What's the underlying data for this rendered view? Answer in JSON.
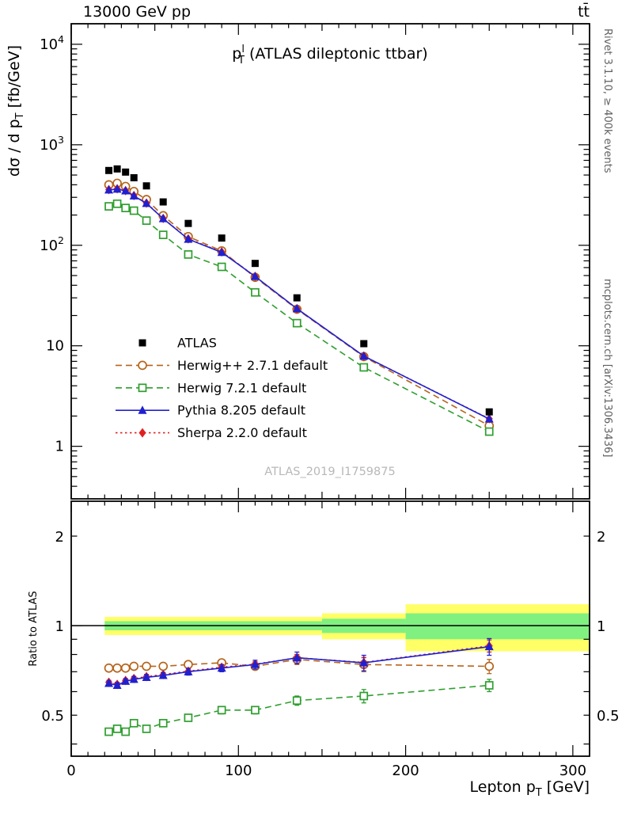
{
  "header": {
    "left": "13000 GeV pp",
    "right": "tt̄"
  },
  "side_notes": {
    "right_top": "Rivet 3.1.10, ≥ 400k events",
    "right_bottom": "mcplots.cern.ch [arXiv:1306.3436]"
  },
  "watermark": "ATLAS_2019_I1759875",
  "labels": {
    "panel_title": {
      "base": "p",
      "sup": "l",
      "sub": "T",
      "rest": " (ATLAS dileptonic ttbar)"
    },
    "ylabel_main": {
      "pre": "dσ / d p",
      "sub": "T",
      "post": " [fb/GeV]"
    },
    "ylabel_ratio": "Ratio to ATLAS",
    "xlabel": {
      "pre": "Lepton p",
      "sub": "T",
      "post": " [GeV]"
    }
  },
  "chart_data": {
    "type": "line",
    "title": "p_T^l (ATLAS dileptonic ttbar)",
    "xlabel": "Lepton p_T [GeV]",
    "ylabel_main": "dσ / d p_T [fb/GeV]",
    "ylabel_ratio": "Ratio to ATLAS",
    "grid": false,
    "legend_position": "middle-left",
    "xlim": [
      0,
      310
    ],
    "ylim_main": [
      0.3,
      16000
    ],
    "ylim_ratio": [
      0.364,
      2.62
    ],
    "x_ticks": [
      0,
      100,
      200,
      300
    ],
    "x_minor_step": 10,
    "y_ticks_main": [
      {
        "v": 1,
        "label": "1"
      },
      {
        "v": 10,
        "label": "10"
      },
      {
        "v": 100,
        "label": "10",
        "exp": "2"
      },
      {
        "v": 1000,
        "label": "10",
        "exp": "3"
      },
      {
        "v": 10000,
        "label": "10",
        "exp": "4"
      }
    ],
    "y_ticks_ratio": [
      {
        "v": 0.5,
        "label": "0.5"
      },
      {
        "v": 1,
        "label": "1"
      },
      {
        "v": 2,
        "label": "2"
      }
    ],
    "x": [
      22.5,
      27.5,
      32.5,
      37.5,
      45,
      55,
      70,
      90,
      110,
      135,
      175,
      250
    ],
    "series": [
      {
        "id": "herwigpp",
        "name": "Herwig++ 2.7.1 default",
        "marker": "circle-open",
        "color": "#b5651d",
        "line": "dashed",
        "values": [
          400,
          414,
          385,
          343,
          285,
          197,
          122,
          88,
          48,
          23.1,
          7.8,
          1.6
        ],
        "ratio": [
          0.72,
          0.72,
          0.72,
          0.73,
          0.73,
          0.73,
          0.74,
          0.75,
          0.73,
          0.77,
          0.74,
          0.73
        ],
        "ratio_err": [
          0.015,
          0.015,
          0.015,
          0.015,
          0.015,
          0.015,
          0.015,
          0.02,
          0.02,
          0.03,
          0.04,
          0.04
        ]
      },
      {
        "id": "herwig7",
        "name": "Herwig 7.2.1 default",
        "marker": "square-open",
        "color": "#2f9e2f",
        "line": "dashed",
        "values": [
          244,
          259,
          235,
          221,
          176,
          127,
          81,
          61,
          34,
          16.8,
          6.1,
          1.4
        ],
        "ratio": [
          0.44,
          0.45,
          0.44,
          0.47,
          0.45,
          0.47,
          0.49,
          0.52,
          0.52,
          0.56,
          0.58,
          0.63
        ],
        "ratio_err": [
          0.01,
          0.01,
          0.01,
          0.01,
          0.01,
          0.01,
          0.012,
          0.015,
          0.015,
          0.02,
          0.03,
          0.03
        ]
      },
      {
        "id": "sherpa",
        "name": "Sherpa 2.2.0 default",
        "marker": "diamond-filled",
        "color": "#e02020",
        "line": "dotted",
        "values": [
          358,
          365,
          350,
          312,
          263,
          185,
          116,
          86,
          49,
          23.4,
          7.9,
          1.88
        ],
        "ratio": [
          0.645,
          0.635,
          0.654,
          0.664,
          0.674,
          0.685,
          0.703,
          0.725,
          0.742,
          0.78,
          0.752,
          0.855
        ],
        "ratio_err": [
          0.01,
          0.01,
          0.01,
          0.01,
          0.01,
          0.01,
          0.01,
          0.012,
          0.015,
          0.02,
          0.03,
          0.04
        ]
      },
      {
        "id": "pythia",
        "name": "Pythia 8.205 default",
        "marker": "triangle-filled",
        "color": "#2020d0",
        "line": "solid",
        "values": [
          355,
          362,
          348,
          310,
          261,
          184,
          115,
          85,
          49,
          23.4,
          7.9,
          1.87
        ],
        "ratio": [
          0.64,
          0.63,
          0.65,
          0.66,
          0.67,
          0.68,
          0.7,
          0.72,
          0.74,
          0.78,
          0.75,
          0.85
        ],
        "ratio_err": [
          0.012,
          0.012,
          0.012,
          0.015,
          0.015,
          0.015,
          0.018,
          0.02,
          0.025,
          0.035,
          0.045,
          0.055
        ]
      },
      {
        "id": "atlas",
        "name": "ATLAS",
        "marker": "square-filled",
        "color": "#000000",
        "line": "none",
        "values": [
          555,
          575,
          535,
          470,
          390,
          270,
          165,
          118,
          66,
          30,
          10.5,
          2.2
        ]
      }
    ],
    "legend_order": [
      "atlas",
      "herwigpp",
      "herwig7",
      "pythia",
      "sherpa"
    ],
    "reference_line": 1,
    "bands": {
      "yellow": {
        "color": "#ffff66",
        "segments": [
          [
            20,
            150,
            0.93,
            1.07
          ],
          [
            150,
            200,
            0.9,
            1.1
          ],
          [
            200,
            310,
            0.82,
            1.18
          ]
        ]
      },
      "green": {
        "color": "#80f080",
        "segments": [
          [
            20,
            150,
            0.965,
            1.035
          ],
          [
            150,
            200,
            0.945,
            1.055
          ],
          [
            200,
            310,
            0.9,
            1.1
          ]
        ]
      }
    }
  }
}
